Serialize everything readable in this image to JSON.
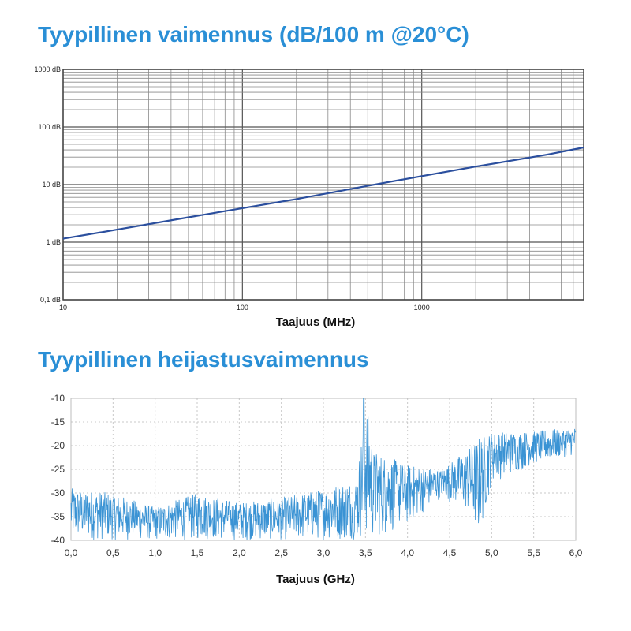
{
  "chart_data": [
    {
      "type": "line",
      "title": "Tyypillinen vaimennus (dB/100 m @20°C)",
      "xlabel": "Taajuus (MHz)",
      "ylabel": "",
      "x_scale": "log",
      "y_scale": "log",
      "xlim": [
        10,
        8000
      ],
      "ylim": [
        0.1,
        1000
      ],
      "x_tick_labels": [
        "10",
        "100",
        "1000"
      ],
      "y_tick_labels": [
        "0,1 dB",
        "1 dB",
        "10 dB",
        "100 dB",
        "1000 dB"
      ],
      "grid": true,
      "series": [
        {
          "color": "#2b4f9e",
          "x": [
            10,
            20,
            50,
            100,
            200,
            500,
            1000,
            2000,
            5000,
            8000
          ],
          "y": [
            1.15,
            1.65,
            2.7,
            3.9,
            5.6,
            9.5,
            14,
            20.5,
            33,
            44
          ]
        }
      ]
    },
    {
      "type": "line",
      "title": "Tyypillinen heijastusvaimennus",
      "xlabel": "Taajuus (GHz)",
      "ylabel": "",
      "xlim": [
        0,
        6
      ],
      "ylim": [
        -40,
        -10
      ],
      "x_tick_labels": [
        "0,0",
        "0,5",
        "1,0",
        "1,5",
        "2,0",
        "2,5",
        "3,0",
        "3,5",
        "4,0",
        "4,5",
        "5,0",
        "5,5",
        "6,0"
      ],
      "y_tick_labels": [
        "-10",
        "-15",
        "-20",
        "-25",
        "-30",
        "-35",
        "-40"
      ],
      "grid": "dotted",
      "series": [
        {
          "color": "#3a93d4",
          "note_shape": "noisy trace",
          "envelope_x": [
            0,
            0.5,
            1.0,
            1.5,
            2.0,
            2.5,
            3.0,
            3.4,
            3.5,
            3.6,
            4.0,
            4.4,
            4.7,
            4.85,
            5.0,
            5.5,
            6.0
          ],
          "envelope_upper": [
            -29,
            -30,
            -33,
            -30,
            -32,
            -31,
            -29,
            -27,
            -10,
            -21,
            -24,
            -25,
            -21,
            -18,
            -17,
            -17,
            -16
          ],
          "envelope_lower": [
            -40,
            -40,
            -40,
            -40,
            -40,
            -40,
            -40,
            -40,
            -40,
            -40,
            -37,
            -31,
            -34,
            -40,
            -28,
            -24,
            -22
          ]
        }
      ]
    }
  ]
}
